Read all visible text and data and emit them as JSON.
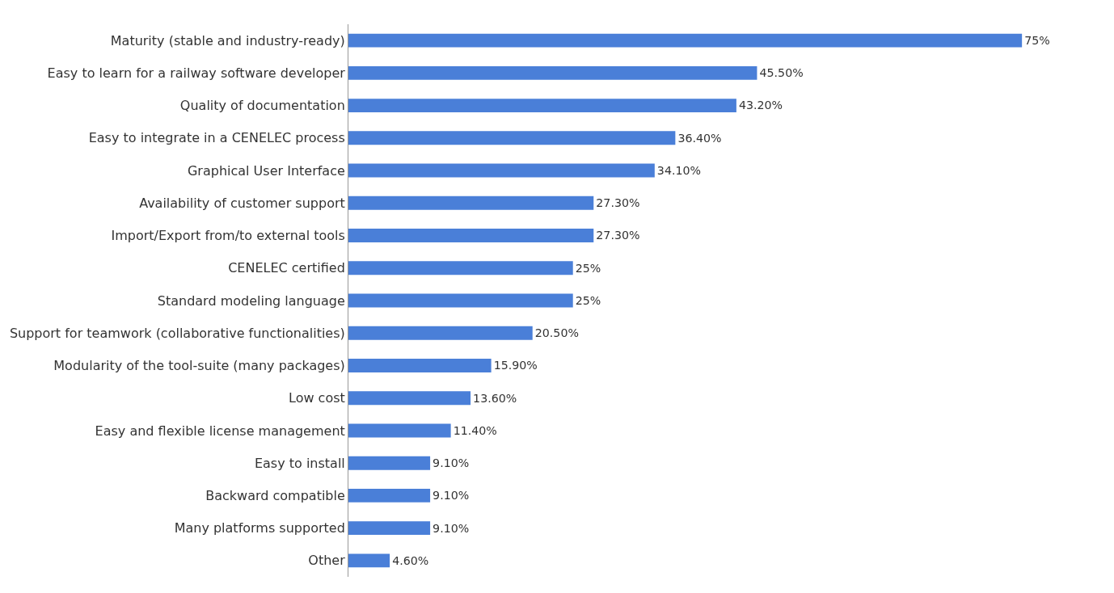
{
  "chart_data": {
    "type": "bar",
    "orientation": "horizontal",
    "categories": [
      "Maturity (stable and industry-ready)",
      "Easy to learn for a railway software developer",
      "Quality of documentation",
      "Easy to integrate in a CENELEC process",
      "Graphical User Interface",
      "Availability of customer support",
      "Import/Export from/to external tools",
      "CENELEC certified",
      "Standard modeling language",
      "Support for teamwork (collaborative functionalities)",
      "Modularity of the tool-suite (many packages)",
      "Low cost",
      "Easy and flexible license management",
      "Easy to install",
      "Backward compatible",
      "Many platforms supported",
      "Other"
    ],
    "values": [
      75,
      45.5,
      43.2,
      36.4,
      34.1,
      27.3,
      27.3,
      25,
      25,
      20.5,
      15.9,
      13.6,
      11.4,
      9.1,
      9.1,
      9.1,
      4.6
    ],
    "value_labels": [
      "75%",
      "45.50%",
      "43.20%",
      "36.40%",
      "34.10%",
      "27.30%",
      "27.30%",
      "25%",
      "25%",
      "20.50%",
      "15.90%",
      "13.60%",
      "11.40%",
      "9.10%",
      "9.10%",
      "9.10%",
      "4.60%"
    ],
    "color": "#4a7fd8",
    "grid": false,
    "legend": false
  }
}
